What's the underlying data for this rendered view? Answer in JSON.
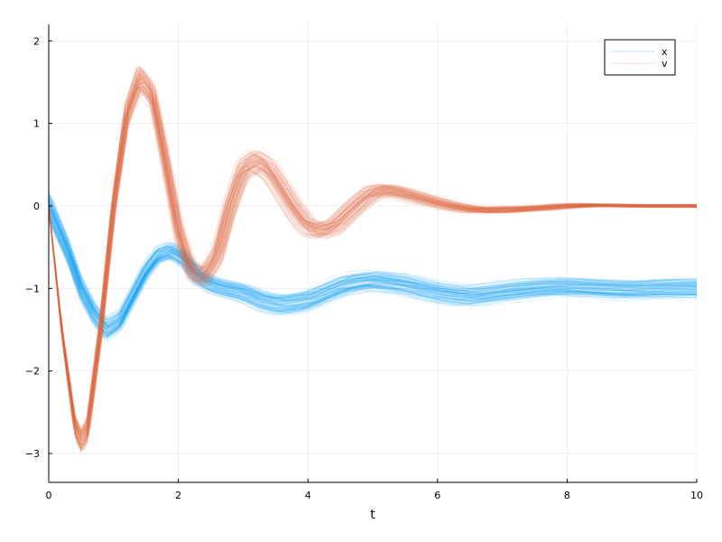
{
  "chart_data": {
    "type": "line",
    "title": "",
    "xlabel": "t",
    "ylabel": "",
    "xlim": [
      0,
      10
    ],
    "ylim": [
      -3.35,
      2.2
    ],
    "x_ticks": [
      0,
      2,
      4,
      6,
      8,
      10
    ],
    "x_tick_labels": [
      "0",
      "2",
      "4",
      "6",
      "8",
      "10"
    ],
    "y_ticks": [
      -3,
      -2,
      -1,
      0,
      1,
      2
    ],
    "y_tick_labels": [
      "−3",
      "−2",
      "−1",
      "0",
      "1",
      "2"
    ],
    "grid": true,
    "legend": {
      "position": "top-right",
      "entries": [
        "x",
        "v"
      ]
    },
    "ensemble": {
      "trajectories_per_series": 120,
      "line_opacity": 0.1
    },
    "series": [
      {
        "name": "x",
        "color": "#009AFA",
        "x": [
          0,
          0.3,
          0.5,
          0.7,
          0.9,
          1.1,
          1.3,
          1.5,
          1.7,
          1.9,
          2.1,
          2.3,
          2.5,
          2.7,
          3.0,
          3.3,
          3.6,
          4.0,
          4.3,
          4.6,
          5.0,
          5.5,
          6.0,
          6.5,
          7.0,
          7.5,
          8.0,
          8.5,
          9.0,
          9.5,
          10.0
        ],
        "values": [
          0.0,
          -0.55,
          -1.0,
          -1.3,
          -1.5,
          -1.4,
          -1.1,
          -0.8,
          -0.6,
          -0.55,
          -0.65,
          -0.85,
          -0.95,
          -1.0,
          -1.05,
          -1.15,
          -1.2,
          -1.15,
          -1.05,
          -0.95,
          -0.9,
          -0.95,
          -1.05,
          -1.1,
          -1.05,
          -1.0,
          -0.98,
          -1.0,
          -1.02,
          -1.0,
          -1.0
        ],
        "spread": [
          0.2,
          0.18,
          0.17,
          0.16,
          0.15,
          0.14,
          0.13,
          0.12,
          0.12,
          0.12,
          0.12,
          0.12,
          0.12,
          0.12,
          0.13,
          0.14,
          0.15,
          0.15,
          0.14,
          0.14,
          0.13,
          0.13,
          0.13,
          0.13,
          0.13,
          0.13,
          0.13,
          0.13,
          0.13,
          0.13,
          0.13
        ]
      },
      {
        "name": "v",
        "color": "#E26F46",
        "x": [
          0,
          0.2,
          0.4,
          0.5,
          0.6,
          0.8,
          1.0,
          1.2,
          1.4,
          1.6,
          1.8,
          2.0,
          2.2,
          2.4,
          2.6,
          2.8,
          3.0,
          3.2,
          3.4,
          3.6,
          3.8,
          4.0,
          4.2,
          4.4,
          4.6,
          4.8,
          5.0,
          5.2,
          5.5,
          5.8,
          6.2,
          6.6,
          7.0,
          7.5,
          8.0,
          8.5,
          9.0,
          9.5,
          10.0
        ],
        "values": [
          0.0,
          -1.5,
          -2.65,
          -2.85,
          -2.7,
          -1.5,
          0.0,
          1.1,
          1.55,
          1.35,
          0.55,
          -0.3,
          -0.8,
          -0.85,
          -0.6,
          0.0,
          0.45,
          0.55,
          0.45,
          0.2,
          -0.05,
          -0.25,
          -0.3,
          -0.25,
          -0.1,
          0.05,
          0.17,
          0.2,
          0.15,
          0.08,
          0.0,
          -0.05,
          -0.05,
          -0.03,
          0.0,
          0.01,
          0.0,
          0.0,
          0.0
        ],
        "spread": [
          0.02,
          0.08,
          0.14,
          0.16,
          0.16,
          0.14,
          0.12,
          0.16,
          0.18,
          0.16,
          0.14,
          0.14,
          0.13,
          0.13,
          0.13,
          0.13,
          0.14,
          0.14,
          0.13,
          0.12,
          0.12,
          0.11,
          0.1,
          0.09,
          0.09,
          0.08,
          0.08,
          0.08,
          0.07,
          0.06,
          0.05,
          0.04,
          0.04,
          0.03,
          0.03,
          0.02,
          0.02,
          0.02,
          0.02
        ]
      }
    ]
  }
}
